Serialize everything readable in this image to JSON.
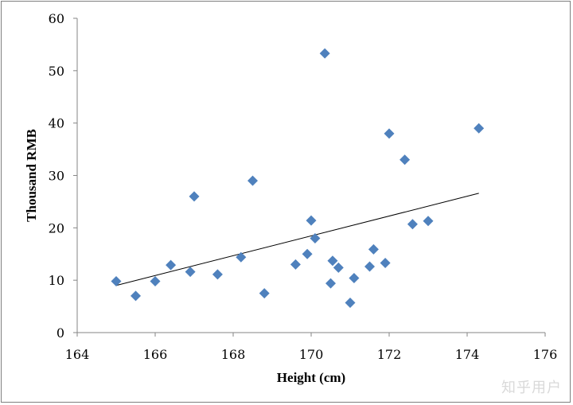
{
  "chart_data": {
    "type": "scatter",
    "title": "",
    "xlabel": "Height (cm)",
    "ylabel": "Thousand RMB",
    "xlim": [
      164,
      176
    ],
    "ylim": [
      0,
      60
    ],
    "x_ticks": [
      164,
      166,
      168,
      170,
      172,
      174,
      176
    ],
    "y_ticks": [
      0,
      10,
      20,
      30,
      40,
      50,
      60
    ],
    "grid": false,
    "legend": "none",
    "marker": "diamond",
    "marker_color": "#4f81bd",
    "trendline": {
      "type": "linear",
      "x": [
        165,
        174.3
      ],
      "y": [
        9,
        26.6
      ],
      "color": "#000000"
    },
    "points": [
      {
        "x": 165.0,
        "y": 9.8
      },
      {
        "x": 165.5,
        "y": 7.0
      },
      {
        "x": 166.0,
        "y": 9.8
      },
      {
        "x": 166.4,
        "y": 12.9
      },
      {
        "x": 166.9,
        "y": 11.6
      },
      {
        "x": 167.0,
        "y": 26.0
      },
      {
        "x": 167.6,
        "y": 11.1
      },
      {
        "x": 168.2,
        "y": 14.4
      },
      {
        "x": 168.5,
        "y": 29.0
      },
      {
        "x": 168.8,
        "y": 7.5
      },
      {
        "x": 169.6,
        "y": 13.0
      },
      {
        "x": 169.9,
        "y": 15.0
      },
      {
        "x": 170.0,
        "y": 21.4
      },
      {
        "x": 170.1,
        "y": 18.0
      },
      {
        "x": 170.35,
        "y": 53.3
      },
      {
        "x": 170.5,
        "y": 9.4
      },
      {
        "x": 170.55,
        "y": 13.7
      },
      {
        "x": 170.7,
        "y": 12.4
      },
      {
        "x": 171.0,
        "y": 5.7
      },
      {
        "x": 171.1,
        "y": 10.4
      },
      {
        "x": 171.5,
        "y": 12.6
      },
      {
        "x": 171.6,
        "y": 15.9
      },
      {
        "x": 171.9,
        "y": 13.3
      },
      {
        "x": 172.0,
        "y": 38.0
      },
      {
        "x": 172.4,
        "y": 33.0
      },
      {
        "x": 172.6,
        "y": 20.7
      },
      {
        "x": 173.0,
        "y": 21.3
      },
      {
        "x": 174.3,
        "y": 39.0
      }
    ]
  },
  "watermark": "知乎用户"
}
